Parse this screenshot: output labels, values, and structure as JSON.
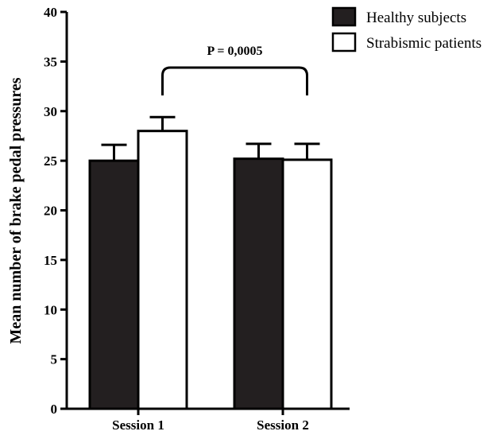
{
  "chart_data": {
    "type": "bar",
    "title": "",
    "xlabel": "",
    "ylabel": "Mean number of brake pedal pressures",
    "ylim": [
      0,
      40
    ],
    "yticks": [
      0,
      5,
      10,
      15,
      20,
      25,
      30,
      35,
      40
    ],
    "categories": [
      "Session 1",
      "Session 2"
    ],
    "series": [
      {
        "name": "Healthy subjects",
        "color": "#231f20",
        "values": [
          25.0,
          25.2
        ],
        "error": [
          1.6,
          1.5
        ]
      },
      {
        "name": "Strabismic patients",
        "color": "#ffffff",
        "values": [
          28.0,
          25.1
        ],
        "error": [
          1.4,
          1.6
        ]
      }
    ],
    "annotation": {
      "text": "P = 0,0005"
    },
    "legend_position": "top-right",
    "grid": false
  }
}
